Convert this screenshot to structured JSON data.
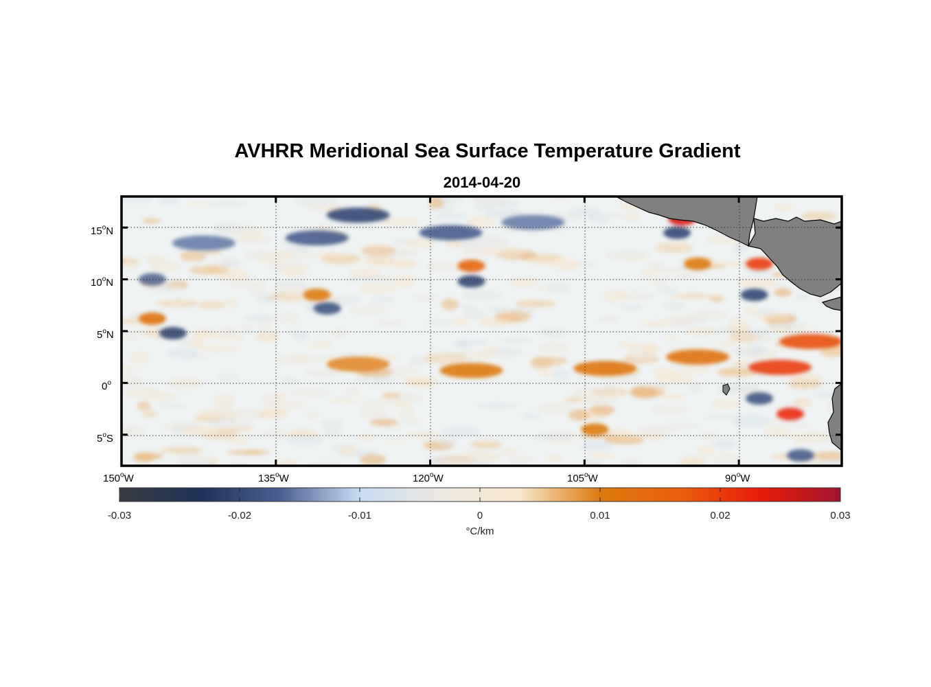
{
  "chart_data": {
    "type": "heatmap",
    "title": "AVHRR Meridional Sea Surface Temperature Gradient",
    "subtitle": "2014-04-20",
    "lon_range": [
      -150,
      -80
    ],
    "lat_range": [
      -8,
      18
    ],
    "lon_ticks": [
      {
        "value": -150,
        "deg": "150",
        "hemi": "W"
      },
      {
        "value": -135,
        "deg": "135",
        "hemi": "W"
      },
      {
        "value": -120,
        "deg": "120",
        "hemi": "W"
      },
      {
        "value": -105,
        "deg": "105",
        "hemi": "W"
      },
      {
        "value": -90,
        "deg": "90",
        "hemi": "W"
      }
    ],
    "lat_ticks": [
      {
        "value": 15,
        "deg": "15",
        "hemi": "N"
      },
      {
        "value": 10,
        "deg": "10",
        "hemi": "N"
      },
      {
        "value": 5,
        "deg": "5",
        "hemi": "N"
      },
      {
        "value": 0,
        "deg": "0",
        "hemi": ""
      },
      {
        "value": -5,
        "deg": "5",
        "hemi": "S"
      }
    ],
    "grid": true,
    "colorbar": {
      "min": -0.03,
      "max": 0.03,
      "ticks": [
        "-0.03",
        "-0.02",
        "-0.01",
        "0",
        "0.01",
        "0.02",
        "0.03"
      ],
      "units": "°C/km",
      "colors": [
        "#3a3d45",
        "#1f3358",
        "#4a5f8f",
        "#c8dcf2",
        "#ece8e1",
        "#f7e6cc",
        "#dd7a10",
        "#e8600a",
        "#ea1a0a",
        "#a0152c"
      ],
      "placement": "bottom"
    },
    "features": [
      {
        "name": "cold-band",
        "lon": -127,
        "lat": 16.2,
        "value": -0.02
      },
      {
        "name": "cold-band",
        "lon": -131,
        "lat": 14.0,
        "value": -0.017
      },
      {
        "name": "cold-band",
        "lon": -142,
        "lat": 13.5,
        "value": -0.015
      },
      {
        "name": "cold-band",
        "lon": -118,
        "lat": 14.5,
        "value": -0.017
      },
      {
        "name": "cold-band",
        "lon": -110,
        "lat": 15.5,
        "value": -0.015
      },
      {
        "name": "cold-patch",
        "lon": -147,
        "lat": 10.0,
        "value": -0.016
      },
      {
        "name": "cold-patch",
        "lon": -145,
        "lat": 4.8,
        "value": -0.02
      },
      {
        "name": "cold-patch",
        "lon": -130,
        "lat": 7.2,
        "value": -0.018
      },
      {
        "name": "cold-patch",
        "lon": -116,
        "lat": 9.8,
        "value": -0.02
      },
      {
        "name": "cold-patch",
        "lon": -96,
        "lat": 14.5,
        "value": -0.02
      },
      {
        "name": "cold-patch",
        "lon": -88.5,
        "lat": 8.5,
        "value": -0.02
      },
      {
        "name": "cold-patch",
        "lon": -88,
        "lat": -1.5,
        "value": -0.018
      },
      {
        "name": "cold-patch",
        "lon": -84,
        "lat": -7,
        "value": -0.017
      },
      {
        "name": "warm-patch",
        "lon": -116,
        "lat": 11.3,
        "value": 0.015
      },
      {
        "name": "warm-patch",
        "lon": -147,
        "lat": 6.2,
        "value": 0.012
      },
      {
        "name": "warm-patch",
        "lon": -131,
        "lat": 8.5,
        "value": 0.01
      },
      {
        "name": "warm-patch",
        "lon": -95.5,
        "lat": 15.8,
        "value": 0.025
      },
      {
        "name": "warm-patch",
        "lon": -88,
        "lat": 11.5,
        "value": 0.02
      },
      {
        "name": "warm-patch",
        "lon": -94,
        "lat": 11.5,
        "value": 0.01
      },
      {
        "name": "warm-band",
        "lon": -127,
        "lat": 1.8,
        "value": 0.009
      },
      {
        "name": "warm-band",
        "lon": -116,
        "lat": 1.2,
        "value": 0.01
      },
      {
        "name": "warm-band",
        "lon": -103,
        "lat": 1.4,
        "value": 0.011
      },
      {
        "name": "warm-band",
        "lon": -94,
        "lat": 2.5,
        "value": 0.012
      },
      {
        "name": "warm-band",
        "lon": -86,
        "lat": 1.5,
        "value": 0.02
      },
      {
        "name": "warm-band",
        "lon": -83,
        "lat": 4.0,
        "value": 0.018
      },
      {
        "name": "warm-patch",
        "lon": -85,
        "lat": -3,
        "value": 0.022
      },
      {
        "name": "warm-patch",
        "lon": -104,
        "lat": -4.5,
        "value": 0.01
      }
    ]
  }
}
